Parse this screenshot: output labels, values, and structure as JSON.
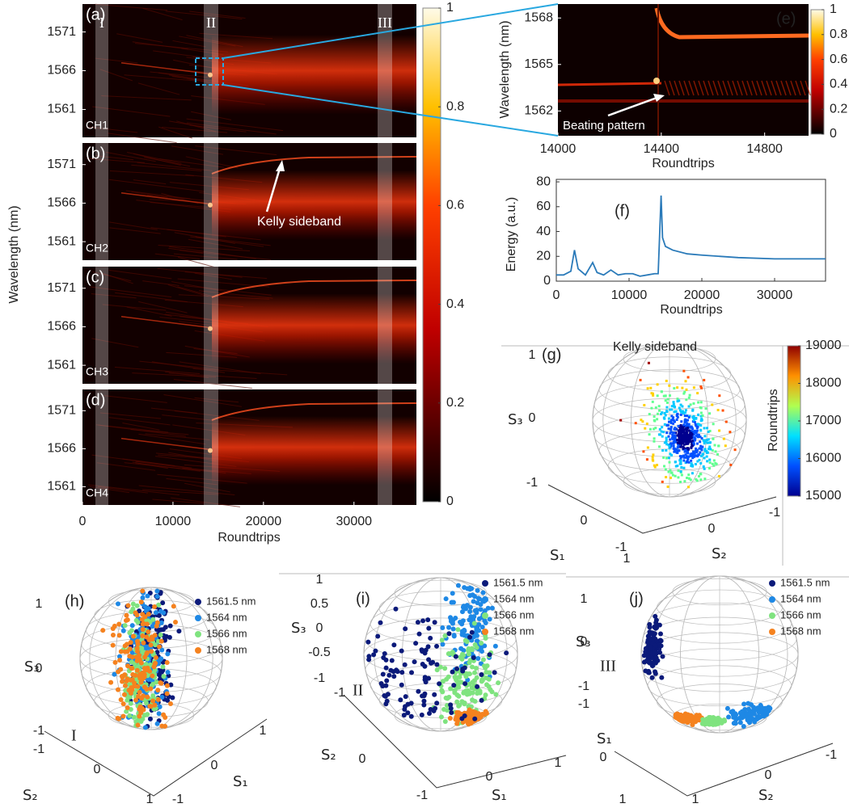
{
  "heatmaps": {
    "panels": [
      {
        "label": "(a)",
        "channel": "CH1",
        "ylim": [
          1557.4,
          1574.6
        ],
        "yticks": [
          1561,
          1566,
          1571
        ]
      },
      {
        "label": "(b)",
        "channel": "CH2",
        "ylim": [
          1558.6,
          1573.8
        ],
        "yticks": [
          1561,
          1566,
          1571
        ]
      },
      {
        "label": "(c)",
        "channel": "CH3",
        "ylim": [
          1558.6,
          1573.8
        ],
        "yticks": [
          1561,
          1566,
          1571
        ]
      },
      {
        "label": "(d)",
        "channel": "CH4",
        "ylim": [
          1558.6,
          1573.8
        ],
        "yticks": [
          1561,
          1566,
          1571
        ]
      }
    ],
    "xlim": [
      0,
      36900
    ],
    "xticks": [
      0,
      10000,
      20000,
      30000
    ],
    "xlabel": "Roundtrips",
    "ylabel": "Wavelength (nm)",
    "regions": [
      "I",
      "II",
      "III"
    ],
    "annotation": "Kelly sideband",
    "colorbar": {
      "lim": [
        0,
        1
      ],
      "ticks": [
        0,
        0.2,
        0.4,
        0.6,
        0.8,
        1
      ]
    }
  },
  "zoom": {
    "label": "(e)",
    "xlabel": "Roundtrips",
    "ylabel": "Wavelength (nm)",
    "xlim": [
      14000,
      14970
    ],
    "xticks": [
      14000,
      14400,
      14800
    ],
    "ylim": [
      1560.4,
      1568.9
    ],
    "yticks": [
      1562,
      1565,
      1568
    ],
    "annotation": "Beating pattern",
    "colorbar": {
      "lim": [
        0,
        1
      ],
      "ticks": [
        0,
        0.2,
        0.4,
        0.6,
        0.8,
        1
      ]
    }
  },
  "energy": {
    "label": "(f)",
    "xlabel": "Roundtrips",
    "ylabel": "Energy (a.u.)",
    "color": "#2a7ab9",
    "xlim": [
      0,
      37000
    ],
    "xticks": [
      0,
      10000,
      20000,
      30000
    ],
    "ylim": [
      0,
      82
    ],
    "yticks": [
      0,
      20,
      40,
      60,
      80
    ],
    "x": [
      0,
      1000,
      2000,
      2500,
      3000,
      4000,
      5000,
      5600,
      6500,
      7500,
      8500,
      9500,
      10500,
      11500,
      12500,
      13500,
      14000,
      14400,
      14600,
      15000,
      16000,
      18000,
      20000,
      25000,
      30000,
      35000,
      37000
    ],
    "values": [
      5,
      5,
      8,
      25,
      10,
      5,
      15,
      7,
      5,
      9,
      5,
      6,
      6,
      4,
      5,
      6,
      6,
      69,
      35,
      28,
      25,
      22,
      21,
      19,
      18,
      18,
      18
    ]
  },
  "kelly_sphere": {
    "label": "(g)",
    "title": "Kelly sideband",
    "axes": {
      "s1": "S₁",
      "s2": "S₂",
      "s3": "S₃"
    },
    "s3_ticks": [
      1,
      0,
      -1
    ],
    "s1_ticks": [
      0,
      -1
    ],
    "s2_ticks": [
      1,
      0,
      -1
    ],
    "colorbar": {
      "label": "Roundtrips",
      "lim": [
        15000,
        19000
      ],
      "ticks": [
        15000,
        16000,
        17000,
        18000,
        19000
      ]
    }
  },
  "spheres": [
    {
      "label": "(h)",
      "region": "I",
      "s3_ticks": [
        1,
        0,
        -1
      ],
      "s2_ticks": [
        -1,
        0,
        1
      ],
      "s1_ticks": [
        -1,
        0,
        1
      ]
    },
    {
      "label": "(i)",
      "region": "II",
      "s3_ticks": [
        1,
        0.5,
        0,
        -0.5,
        -1
      ],
      "s2_ticks": [
        -1,
        0
      ],
      "s1_ticks": [
        -1,
        0,
        1
      ]
    },
    {
      "label": "(j)",
      "region": "III",
      "s3_ticks": [
        1,
        0,
        -1
      ],
      "s1_ticks": [
        -1,
        0,
        1
      ],
      "s2_ticks": [
        1,
        0,
        -1
      ]
    }
  ],
  "legend": [
    {
      "name": "1561.5 nm",
      "color": "#0b1a7a"
    },
    {
      "name": "1564 nm",
      "color": "#1e88e5"
    },
    {
      "name": "1566 nm",
      "color": "#7fe37f"
    },
    {
      "name": "1568 nm",
      "color": "#f5821f"
    }
  ]
}
